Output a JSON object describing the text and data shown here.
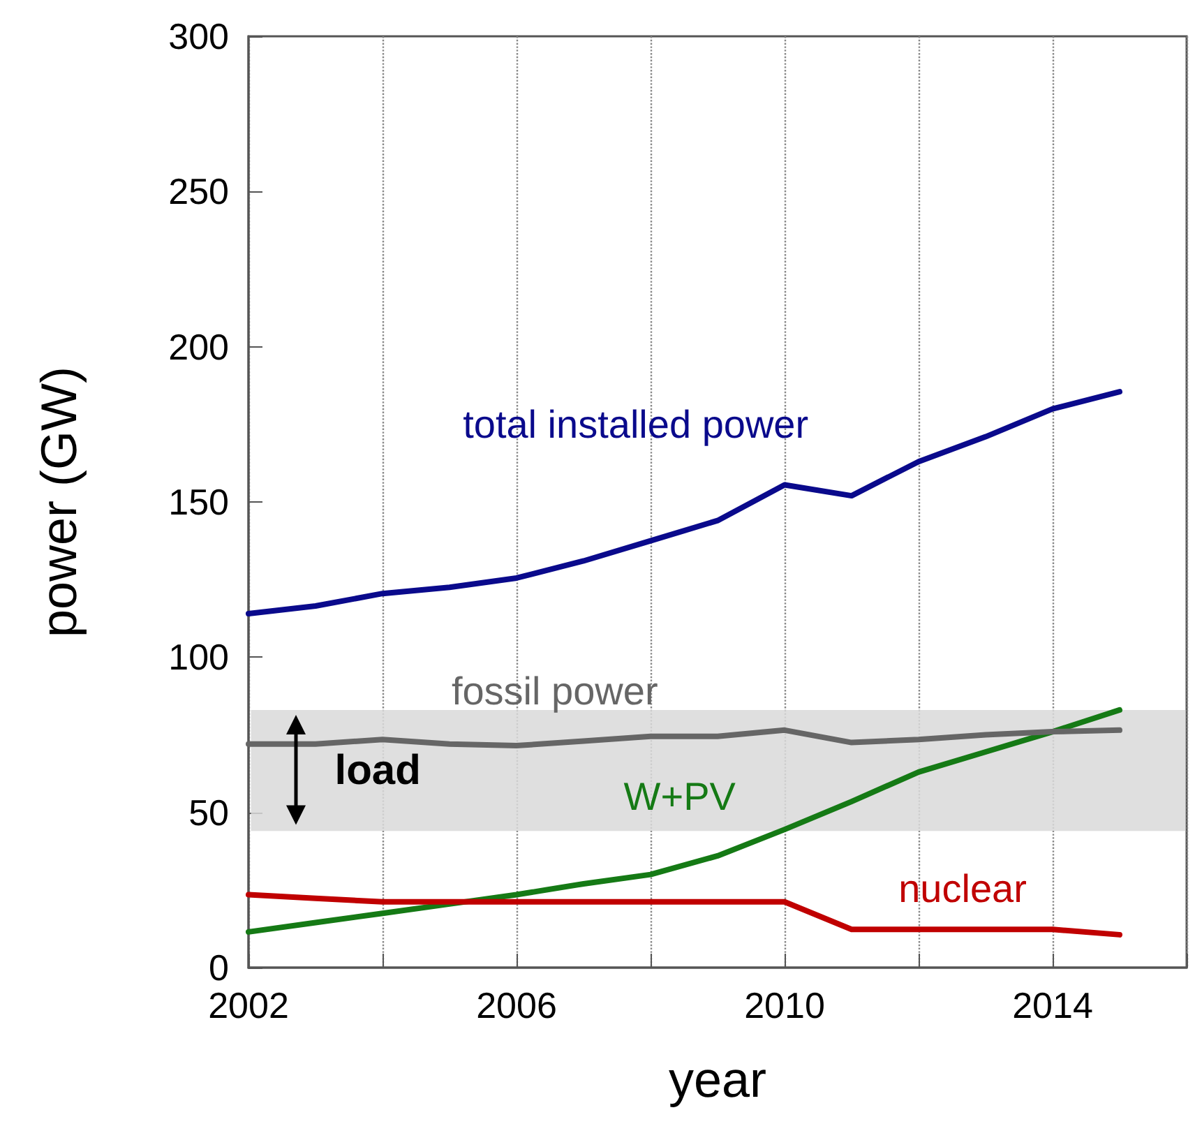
{
  "chart_data": {
    "type": "line",
    "xlabel": "year",
    "ylabel": "power (GW)",
    "x": [
      2002,
      2003,
      2004,
      2005,
      2006,
      2007,
      2008,
      2009,
      2010,
      2011,
      2012,
      2013,
      2014,
      2015
    ],
    "series": [
      {
        "name": "total installed power",
        "color": "#0a0a8c",
        "values": [
          114,
          116.5,
          120.5,
          122.5,
          125.5,
          131,
          137.5,
          144,
          155.5,
          152,
          163,
          171,
          180,
          185.5
        ]
      },
      {
        "name": "fossil power",
        "color": "#666666",
        "values": [
          72,
          72,
          73.5,
          72,
          71.5,
          73,
          74.5,
          74.5,
          76.5,
          72.5,
          73.5,
          75,
          76,
          76.5
        ]
      },
      {
        "name": "W+PV",
        "color": "#157a15",
        "values": [
          11.5,
          14.5,
          17.5,
          20.5,
          23.5,
          27,
          30,
          36,
          44.5,
          53.5,
          63,
          69.5,
          76,
          83
        ]
      },
      {
        "name": "nuclear",
        "color": "#c00000",
        "values": [
          23.5,
          22.3,
          21.2,
          21.2,
          21.2,
          21.2,
          21.2,
          21.2,
          21.2,
          12.3,
          12.3,
          12.3,
          12.3,
          10.6
        ]
      }
    ],
    "bands": [
      {
        "axis": "y",
        "from": 44,
        "to": 83,
        "label": "load",
        "color": "#d9d9d9"
      }
    ],
    "xlim": [
      2002,
      2016
    ],
    "xticks": [
      2002,
      {
        "value": 2004,
        "label": null
      },
      2006,
      {
        "value": 2008,
        "label": null
      },
      2010,
      {
        "value": 2012,
        "label": null
      },
      2014,
      {
        "value": 2016,
        "label": null
      }
    ],
    "ylim": [
      0,
      300
    ],
    "yticks": [
      0,
      50,
      100,
      150,
      200,
      250,
      300
    ],
    "grid": "x",
    "legend": false,
    "marker": "none",
    "line_style": "solid"
  }
}
